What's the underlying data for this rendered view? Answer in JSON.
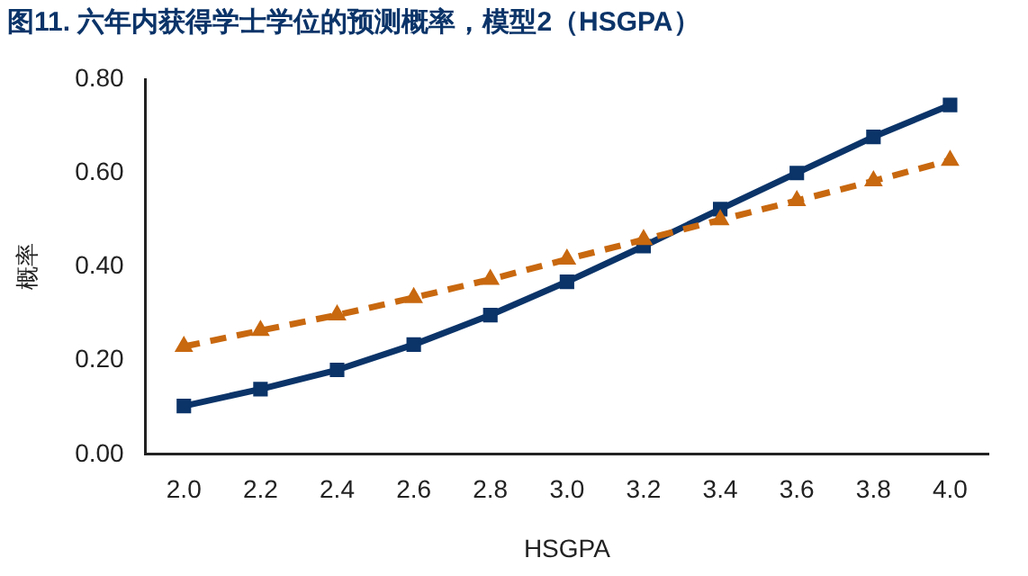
{
  "chart_data": {
    "type": "line",
    "title": "图11. 六年内获得学士学位的预测概率，模型2（HSGPA）",
    "xlabel": "HSGPA",
    "ylabel": "概率",
    "categories": [
      "2.0",
      "2.2",
      "2.4",
      "2.6",
      "2.8",
      "3.0",
      "3.2",
      "3.4",
      "3.6",
      "3.8",
      "4.0"
    ],
    "series": [
      {
        "color": "#0b3469",
        "marker": "square",
        "line_style": "solid",
        "values": [
          0.103,
          0.139,
          0.18,
          0.234,
          0.297,
          0.368,
          0.444,
          0.523,
          0.6,
          0.677,
          0.745
        ]
      },
      {
        "color": "#c8680f",
        "marker": "triangle",
        "line_style": "dashed",
        "values": [
          0.23,
          0.264,
          0.297,
          0.334,
          0.373,
          0.416,
          0.458,
          0.5,
          0.541,
          0.583,
          0.627
        ]
      }
    ],
    "ylim": [
      0,
      0.8
    ],
    "yticks": [
      {
        "value": 0,
        "label": "0.00"
      },
      {
        "value": 0.2,
        "label": "0.20"
      },
      {
        "value": 0.4,
        "label": "0.40"
      },
      {
        "value": 0.6,
        "label": "0.60"
      },
      {
        "value": 0.8,
        "label": "0.80"
      }
    ],
    "grid": false,
    "legend": false
  }
}
